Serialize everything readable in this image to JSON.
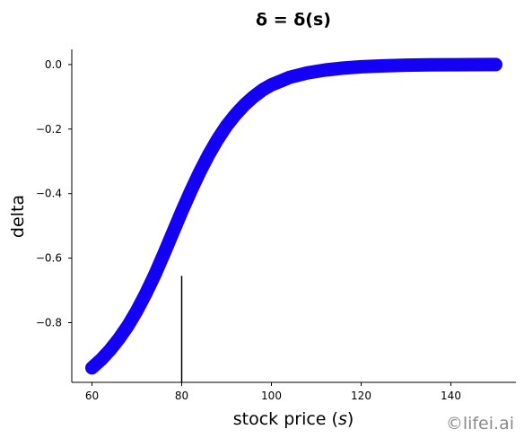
{
  "chart_data": {
    "type": "line",
    "title": "δ = δ(s)",
    "xlabel": "stock price (s)",
    "xlabel_plain": "stock price (",
    "xlabel_var": "s",
    "xlabel_close": ")",
    "ylabel": "delta",
    "xlim": [
      55.5,
      154.5
    ],
    "ylim": [
      -0.985,
      0.047
    ],
    "xticks": [
      60,
      80,
      100,
      120,
      140
    ],
    "yticks": [
      0.0,
      -0.2,
      -0.4,
      -0.6,
      -0.8
    ],
    "ytick_labels": [
      "0.0",
      "−0.2",
      "−0.4",
      "−0.6",
      "−0.8"
    ],
    "series": [
      {
        "color": "#1400f4",
        "x": [
          60,
          62,
          64,
          66,
          68,
          70,
          72,
          74,
          76,
          78,
          80,
          82,
          84,
          86,
          88,
          90,
          92,
          94,
          96,
          98,
          100,
          104,
          108,
          112,
          116,
          120,
          125,
          130,
          135,
          140,
          145,
          150
        ],
        "y": [
          -0.94,
          -0.915,
          -0.885,
          -0.85,
          -0.81,
          -0.763,
          -0.71,
          -0.652,
          -0.588,
          -0.522,
          -0.456,
          -0.393,
          -0.334,
          -0.28,
          -0.232,
          -0.19,
          -0.155,
          -0.125,
          -0.1,
          -0.079,
          -0.063,
          -0.04,
          -0.026,
          -0.017,
          -0.011,
          -0.007,
          -0.004,
          -0.002,
          -0.001,
          -0.0006,
          -0.0003,
          -0.0001
        ]
      }
    ],
    "vline": {
      "x": 80,
      "y_top": -0.655,
      "color": "#000000"
    },
    "grid": false,
    "legend": "none"
  },
  "watermark": "©lifei.ai"
}
